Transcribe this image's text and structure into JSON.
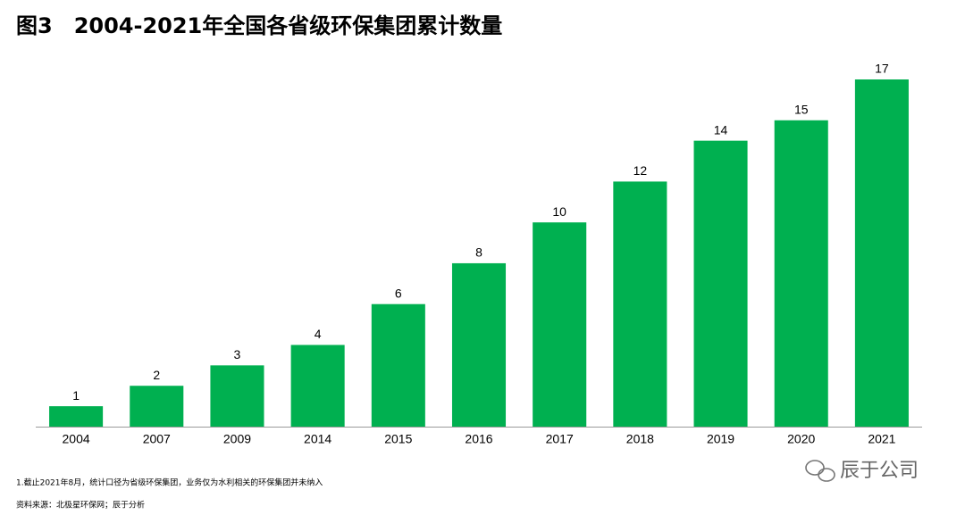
{
  "chart_data": {
    "type": "bar",
    "title": "图3　2004-2021年全国各省级环保集团累计数量",
    "categories": [
      "2004",
      "2007",
      "2009",
      "2014",
      "2015",
      "2016",
      "2017",
      "2018",
      "2019",
      "2020",
      "2021"
    ],
    "values": [
      1,
      2,
      3,
      4,
      6,
      8,
      10,
      12,
      14,
      15,
      17
    ],
    "color": "#00b050",
    "ylim": [
      0,
      17
    ],
    "grid": false,
    "data_labels": true
  },
  "notes": [
    "1.截止2021年8月，统计口径为省级环保集团，业务仅为水利相关的环保集团并未纳入",
    "资料来源：北极星环保网；辰于分析"
  ],
  "watermark": "辰于公司"
}
